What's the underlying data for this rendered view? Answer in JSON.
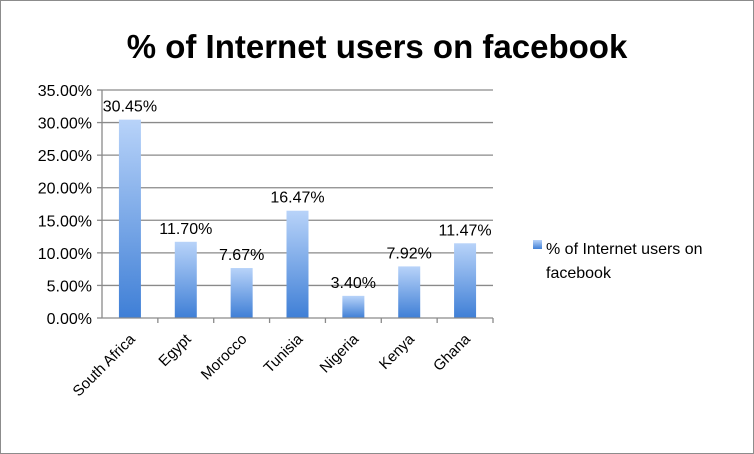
{
  "chart_data": {
    "type": "bar",
    "title": "% of Internet users on facebook",
    "xlabel": "",
    "ylabel": "",
    "categories": [
      "South Africa",
      "Egypt",
      "Morocco",
      "Tunisia",
      "Nigeria",
      "Kenya",
      "Ghana"
    ],
    "series": [
      {
        "name": "% of Internet users on facebook",
        "values": [
          30.45,
          11.7,
          7.67,
          16.47,
          3.4,
          7.92,
          11.47
        ],
        "labels": [
          "30.45%",
          "11.70%",
          "7.67%",
          "16.47%",
          "3.40%",
          "7.92%",
          "11.47%"
        ]
      }
    ],
    "ylim": [
      0,
      35
    ],
    "yticks": [
      0,
      5,
      10,
      15,
      20,
      25,
      30,
      35
    ],
    "ytick_labels": [
      "0.00%",
      "5.00%",
      "10.00%",
      "15.00%",
      "20.00%",
      "25.00%",
      "30.00%",
      "35.00%"
    ],
    "grid": true,
    "legend": {
      "position": "right",
      "lines": [
        "% of Internet users on",
        "facebook"
      ]
    },
    "colors": {
      "bar_light": "#b8d3f9",
      "bar_dark": "#3f7fd6",
      "grid": "#8a8a8a"
    }
  }
}
